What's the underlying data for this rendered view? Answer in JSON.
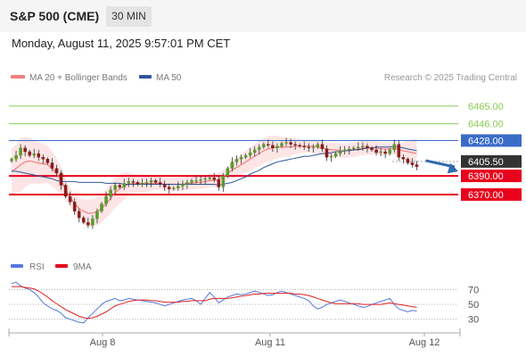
{
  "header": {
    "symbol": "S&P 500 (CME)",
    "timeframe": "30 MIN",
    "datetime": "Monday, August 11, 2025 9:57:01 PM CET"
  },
  "legend": {
    "bollinger_label": "MA 20 + Bollinger Bands",
    "ma50_label": "MA 50",
    "credit": "Research © 2025 Trading Central"
  },
  "rsi_legend": {
    "rsi_label": "RSI",
    "ma_label": "9MA"
  },
  "colors": {
    "bollinger": "#f08080",
    "band_fill": "#fde0e0",
    "ma50": "#2f5597",
    "green_level": "#8ccc55",
    "blue_level": "#3a6bc8",
    "red_level": "#e8001c",
    "price_tag": "#333333",
    "arrow": "#2f6bb0",
    "rsi": "#5577dd",
    "rsi_ma": "#e02020",
    "up_candle": "#5a9a2a",
    "down_candle": "#8b1a1a"
  },
  "chart_data": [
    {
      "type": "candlestick",
      "x_ticks": [
        "Aug 8",
        "Aug 11",
        "Aug 12"
      ],
      "levels": [
        {
          "value": 6465.0,
          "label": "6465.00",
          "style": "green"
        },
        {
          "value": 6446.0,
          "label": "6446.00",
          "style": "green"
        },
        {
          "value": 6428.0,
          "label": "6428.00",
          "style": "blue"
        },
        {
          "value": 6405.5,
          "label": "6405.50",
          "style": "last"
        },
        {
          "value": 6390.0,
          "label": "6390.00",
          "style": "red"
        },
        {
          "value": 6370.0,
          "label": "6370.00",
          "style": "red"
        }
      ],
      "last_price": 6405.5,
      "ylim": [
        6322,
        6485
      ],
      "price_close": [
        6408,
        6412,
        6420,
        6416,
        6412,
        6414,
        6410,
        6408,
        6404,
        6398,
        6393,
        6380,
        6368,
        6362,
        6352,
        6345,
        6340,
        6337,
        6344,
        6352,
        6360,
        6368,
        6375,
        6380,
        6378,
        6382,
        6384,
        6383,
        6381,
        6382,
        6383,
        6385,
        6383,
        6381,
        6378,
        6376,
        6377,
        6379,
        6381,
        6383,
        6385,
        6385,
        6386,
        6387,
        6388,
        6386,
        6378,
        6390,
        6398,
        6405,
        6408,
        6410,
        6412,
        6415,
        6418,
        6421,
        6424,
        6423,
        6420,
        6422,
        6425,
        6426,
        6424,
        6423,
        6422,
        6421,
        6420,
        6421,
        6424,
        6419,
        6410,
        6411,
        6414,
        6417,
        6418,
        6419,
        6420,
        6421,
        6422,
        6420,
        6418,
        6415,
        6416,
        6414,
        6418,
        6424,
        6410,
        6408,
        6404,
        6402,
        6400
      ],
      "ma20": [
        6395,
        6398,
        6402,
        6405,
        6406,
        6405,
        6404,
        6403,
        6402,
        6398,
        6392,
        6385,
        6375,
        6367,
        6360,
        6355,
        6352,
        6350,
        6350,
        6352,
        6355,
        6360,
        6366,
        6372,
        6376,
        6379,
        6381,
        6382,
        6382,
        6382,
        6382,
        6382,
        6382,
        6382,
        6381,
        6381,
        6381,
        6381,
        6381,
        6382,
        6382,
        6383,
        6383,
        6384,
        6385,
        6385,
        6386,
        6389,
        6393,
        6396,
        6399,
        6402,
        6405,
        6408,
        6411,
        6414,
        6417,
        6419,
        6420,
        6421,
        6421,
        6421,
        6421,
        6422,
        6422,
        6422,
        6422,
        6422,
        6421,
        6420,
        6419,
        6418,
        6418,
        6417,
        6417,
        6418,
        6418,
        6419,
        6420,
        6420,
        6420,
        6420,
        6419,
        6419,
        6419,
        6420,
        6418,
        6417,
        6416,
        6415,
        6414
      ],
      "ma50": [
        6395,
        6395,
        6394,
        6393,
        6392,
        6391,
        6390,
        6389,
        6388,
        6387,
        6385,
        6384,
        6384,
        6384,
        6384,
        6383,
        6383,
        6383,
        6383,
        6383,
        6383,
        6382,
        6382,
        6382,
        6382,
        6381,
        6381,
        6381,
        6381,
        6381,
        6381,
        6381,
        6381,
        6381,
        6381,
        6381,
        6381,
        6381,
        6381,
        6381,
        6381,
        6381,
        6381,
        6381,
        6381,
        6381,
        6380,
        6381,
        6382,
        6383,
        6385,
        6387,
        6389,
        6392,
        6394,
        6396,
        6399,
        6401,
        6403,
        6405,
        6406,
        6407,
        6408,
        6409,
        6410,
        6411,
        6411,
        6412,
        6413,
        6414,
        6414,
        6415,
        6416,
        6416,
        6417,
        6417,
        6418,
        6418,
        6419,
        6420,
        6420,
        6421,
        6421,
        6421,
        6421,
        6422,
        6421,
        6420,
        6419,
        6418,
        6417
      ]
    },
    {
      "type": "line",
      "series": [
        {
          "name": "RSI",
          "values": [
            78,
            80,
            75,
            72,
            70,
            66,
            60,
            52,
            48,
            44,
            42,
            38,
            32,
            30,
            28,
            26,
            25,
            32,
            38,
            44,
            50,
            54,
            56,
            58,
            55,
            56,
            58,
            57,
            56,
            55,
            54,
            53,
            52,
            50,
            48,
            50,
            52,
            54,
            56,
            57,
            58,
            55,
            50,
            58,
            66,
            60,
            52,
            56,
            60,
            62,
            64,
            63,
            64,
            66,
            68,
            66,
            64,
            62,
            63,
            66,
            68,
            66,
            64,
            62,
            60,
            58,
            55,
            48,
            44,
            46,
            50,
            52,
            54,
            56,
            54,
            52,
            50,
            48,
            46,
            47,
            50,
            52,
            54,
            56,
            58,
            50,
            44,
            42,
            40,
            42,
            41
          ]
        },
        {
          "name": "9MA",
          "values": [
            74,
            74,
            74,
            73,
            72,
            71,
            68,
            64,
            60,
            55,
            51,
            47,
            43,
            40,
            37,
            34,
            32,
            31,
            32,
            34,
            37,
            40,
            44,
            48,
            50,
            52,
            54,
            55,
            56,
            56,
            56,
            55,
            55,
            54,
            53,
            53,
            53,
            53,
            54,
            54,
            55,
            55,
            55,
            55,
            57,
            58,
            58,
            58,
            58,
            59,
            60,
            61,
            62,
            63,
            64,
            64,
            65,
            65,
            65,
            65,
            65,
            65,
            65,
            64,
            64,
            63,
            62,
            60,
            58,
            56,
            54,
            52,
            51,
            51,
            51,
            51,
            51,
            51,
            50,
            50,
            50,
            50,
            50,
            51,
            52,
            51,
            50,
            49,
            48,
            47,
            46
          ]
        }
      ],
      "ylim": [
        20,
        85
      ],
      "ref_lines": [
        70,
        50,
        30
      ]
    }
  ]
}
